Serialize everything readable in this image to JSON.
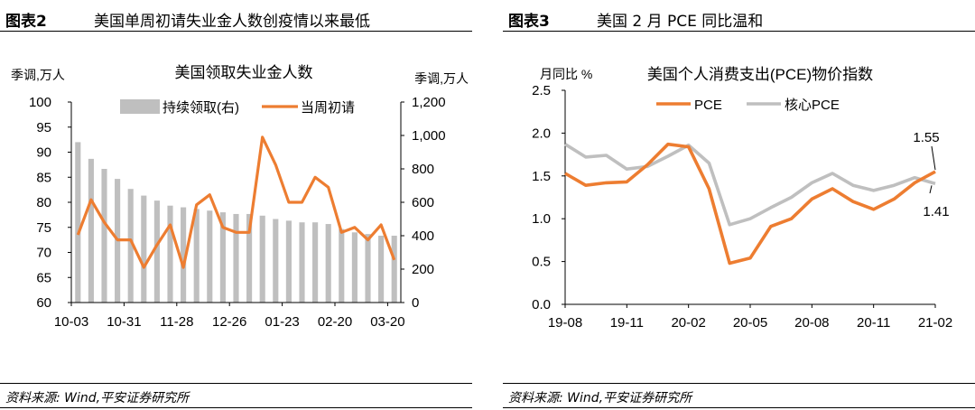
{
  "left": {
    "figure_label": "图表2",
    "figure_title": "美国单周初请失业金人数创疫情以来最低",
    "source": "资料来源: Wind,平安证券研究所",
    "chart_data": {
      "type": "bar+line",
      "title": "美国领取失业金人数",
      "ylabel_left": "季调,万人",
      "ylabel_right": "季调,万人",
      "ylim_left": [
        60,
        100
      ],
      "ylim_right": [
        0,
        1200
      ],
      "yticks_left": [
        "60",
        "65",
        "70",
        "75",
        "80",
        "85",
        "90",
        "95",
        "100"
      ],
      "yticks_right": [
        "0",
        "200",
        "400",
        "600",
        "800",
        "1,000",
        "1,200"
      ],
      "xtick_labels": [
        "10-03",
        "10-31",
        "11-28",
        "12-26",
        "01-23",
        "02-20",
        "03-20"
      ],
      "legend": [
        "持续领取(右)",
        "当周初请"
      ],
      "colors": {
        "bar": "#bfbfbf",
        "line": "#ed7d31"
      },
      "series": [
        {
          "name": "持续领取(右)",
          "axis": "right",
          "values": [
            960,
            860,
            800,
            740,
            680,
            640,
            610,
            580,
            570,
            560,
            550,
            540,
            530,
            530,
            520,
            500,
            490,
            480,
            480,
            470,
            440,
            420,
            410,
            400,
            400
          ]
        },
        {
          "name": "当周初请",
          "axis": "left",
          "values": [
            73.5,
            80.5,
            76,
            72.5,
            72.5,
            67,
            71.5,
            75.5,
            67,
            79.5,
            81.5,
            75,
            74,
            74,
            93,
            87.5,
            80,
            80,
            85,
            83,
            74,
            75,
            72.5,
            75.5,
            68.5
          ]
        }
      ]
    }
  },
  "right": {
    "figure_label": "图表3",
    "figure_title": "美国 2 月 PCE 同比温和",
    "source": "资料来源: Wind,平安证券研究所",
    "chart_data": {
      "type": "line",
      "title": "美国个人消费支出(PCE)物价指数",
      "ylabel": "月同比 %",
      "ylim": [
        0,
        2.5
      ],
      "yticks": [
        "0.0",
        "0.5",
        "1.0",
        "1.5",
        "2.0",
        "2.5"
      ],
      "x": [
        "19-08",
        "19-09",
        "19-10",
        "19-11",
        "19-12",
        "20-01",
        "20-02",
        "20-03",
        "20-04",
        "20-05",
        "20-06",
        "20-07",
        "20-08",
        "20-09",
        "20-10",
        "20-11",
        "20-12",
        "21-01",
        "21-02"
      ],
      "xtick_labels": [
        "19-08",
        "19-11",
        "20-02",
        "20-05",
        "20-08",
        "20-11",
        "21-02"
      ],
      "colors": {
        "PCE": "#ed7d31",
        "核心PCE": "#bfbfbf"
      },
      "series": [
        {
          "name": "PCE",
          "values": [
            1.53,
            1.39,
            1.42,
            1.43,
            1.63,
            1.87,
            1.84,
            1.35,
            0.48,
            0.54,
            0.91,
            1.0,
            1.23,
            1.35,
            1.2,
            1.11,
            1.23,
            1.42,
            1.55
          ]
        },
        {
          "name": "核心PCE",
          "values": [
            1.87,
            1.72,
            1.74,
            1.58,
            1.61,
            1.73,
            1.86,
            1.65,
            0.93,
            1.0,
            1.13,
            1.25,
            1.42,
            1.53,
            1.39,
            1.33,
            1.39,
            1.48,
            1.41
          ]
        }
      ],
      "annotations": [
        "1.55",
        "1.41"
      ]
    }
  }
}
